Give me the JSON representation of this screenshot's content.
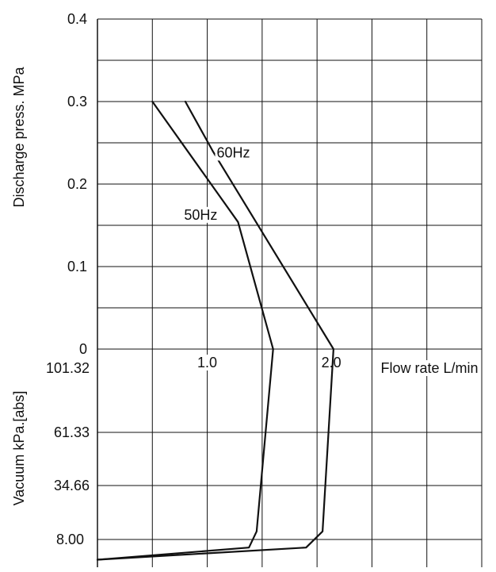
{
  "chart_data": {
    "type": "line",
    "title": "",
    "xlabel": "Flow rate L/min",
    "ylabel_top": "Discharge press. MPa",
    "ylabel_bottom": "Vacuum kPa.[abs]",
    "x_ticks": [
      "1.0",
      "2.0"
    ],
    "x_tick_values": [
      1.0,
      2.0
    ],
    "xlim": [
      0.0,
      3.5
    ],
    "pressure_ticks": [
      "0.4",
      "0.3",
      "0.2",
      "0.1",
      "0"
    ],
    "pressure_tick_values": [
      0.4,
      0.3,
      0.2,
      0.1,
      0.0
    ],
    "ylim_pressure": [
      0.0,
      0.4
    ],
    "vacuum_ticks": [
      "101.32",
      "61.33",
      "34.66",
      "8.00"
    ],
    "vacuum_tick_values": [
      101.32,
      61.33,
      34.66,
      8.0
    ],
    "grid": true,
    "series": [
      {
        "name": "50Hz",
        "pressure_points": [
          [
            0.5,
            0.3
          ],
          [
            1.28,
            0.154
          ],
          [
            1.6,
            0.0
          ]
        ],
        "vacuum_points": [
          [
            1.6,
            101.32
          ],
          [
            1.45,
            12.0
          ],
          [
            1.38,
            4.0
          ],
          [
            0.0,
            -2.0
          ]
        ]
      },
      {
        "name": "60Hz",
        "pressure_points": [
          [
            0.8,
            0.3
          ],
          [
            1.05,
            0.24
          ],
          [
            2.15,
            0.0
          ]
        ],
        "vacuum_points": [
          [
            2.15,
            101.32
          ],
          [
            2.05,
            12.0
          ],
          [
            1.9,
            4.0
          ],
          [
            0.0,
            -2.0
          ]
        ]
      }
    ]
  }
}
